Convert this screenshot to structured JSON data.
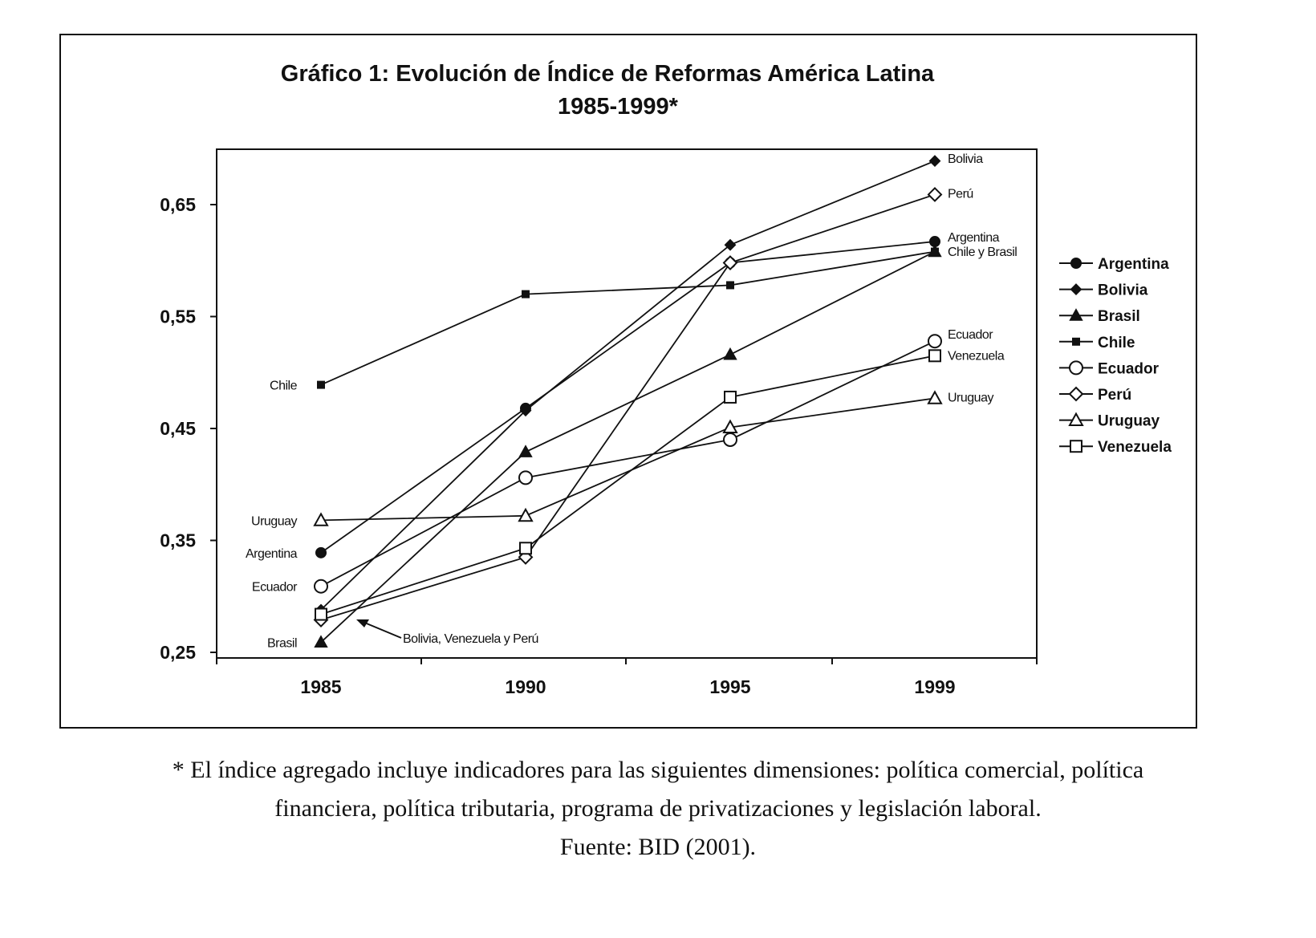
{
  "chart_data": {
    "type": "line",
    "title": "Gráfico 1: Evolución de Índice de Reformas América Latina",
    "subtitle": "1985-1999*",
    "xlabel": "",
    "ylabel": "",
    "categories": [
      "1985",
      "1990",
      "1995",
      "1999"
    ],
    "ylim": [
      0.25,
      0.7
    ],
    "yticks": [
      "0,25",
      "0,35",
      "0,45",
      "0,55",
      "0,65"
    ],
    "ytick_values": [
      0.25,
      0.35,
      0.45,
      0.55,
      0.65
    ],
    "grid": false,
    "legend_placement": "right",
    "series": [
      {
        "name": "Argentina",
        "marker": "filled-circle",
        "values": [
          0.339,
          0.468,
          0.598,
          0.617
        ]
      },
      {
        "name": "Bolivia",
        "marker": "filled-diamond",
        "values": [
          0.288,
          0.466,
          0.614,
          0.689
        ]
      },
      {
        "name": "Brasil",
        "marker": "filled-triangle",
        "values": [
          0.259,
          0.429,
          0.516,
          0.608
        ]
      },
      {
        "name": "Chile",
        "marker": "filled-square-small",
        "values": [
          0.489,
          0.57,
          0.578,
          0.608
        ]
      },
      {
        "name": "Ecuador",
        "marker": "open-circle",
        "values": [
          0.309,
          0.406,
          0.44,
          0.528
        ]
      },
      {
        "name": "Perú",
        "marker": "open-diamond",
        "values": [
          0.279,
          0.335,
          0.598,
          0.659
        ]
      },
      {
        "name": "Uruguay",
        "marker": "open-triangle",
        "values": [
          0.368,
          0.372,
          0.451,
          0.477
        ]
      },
      {
        "name": "Venezuela",
        "marker": "open-square",
        "values": [
          0.284,
          0.343,
          0.478,
          0.515
        ]
      }
    ],
    "annotations": [
      {
        "text": "Chile",
        "year": "1985",
        "value": 0.489,
        "side": "left"
      },
      {
        "text": "Uruguay",
        "year": "1985",
        "value": 0.368,
        "side": "left"
      },
      {
        "text": "Argentina",
        "year": "1985",
        "value": 0.339,
        "side": "left"
      },
      {
        "text": "Ecuador",
        "year": "1985",
        "value": 0.309,
        "side": "left"
      },
      {
        "text": "Brasil",
        "year": "1985",
        "value": 0.259,
        "side": "left"
      },
      {
        "text": "Bolivia, Venezuela y Perú",
        "year": "1985",
        "value": 0.262,
        "side": "arrow"
      },
      {
        "text": "Bolivia",
        "year": "1999",
        "value": 0.69,
        "side": "right"
      },
      {
        "text": "Perú",
        "year": "1999",
        "value": 0.659,
        "side": "right"
      },
      {
        "text": "Argentina",
        "year": "1999",
        "value": 0.62,
        "side": "right"
      },
      {
        "text": "Chile y Brasil",
        "year": "1999",
        "value": 0.607,
        "side": "right"
      },
      {
        "text": "Ecuador",
        "year": "1999",
        "value": 0.533,
        "side": "right"
      },
      {
        "text": "Venezuela",
        "year": "1999",
        "value": 0.514,
        "side": "right"
      },
      {
        "text": "Uruguay",
        "year": "1999",
        "value": 0.477,
        "side": "right"
      }
    ]
  },
  "footnote": {
    "line1": "* El índice agregado incluye indicadores para las siguientes dimensiones: política comercial, política",
    "line2": "financiera, política tributaria, programa de privatizaciones y legislación laboral.",
    "source": "Fuente: BID (2001)."
  }
}
